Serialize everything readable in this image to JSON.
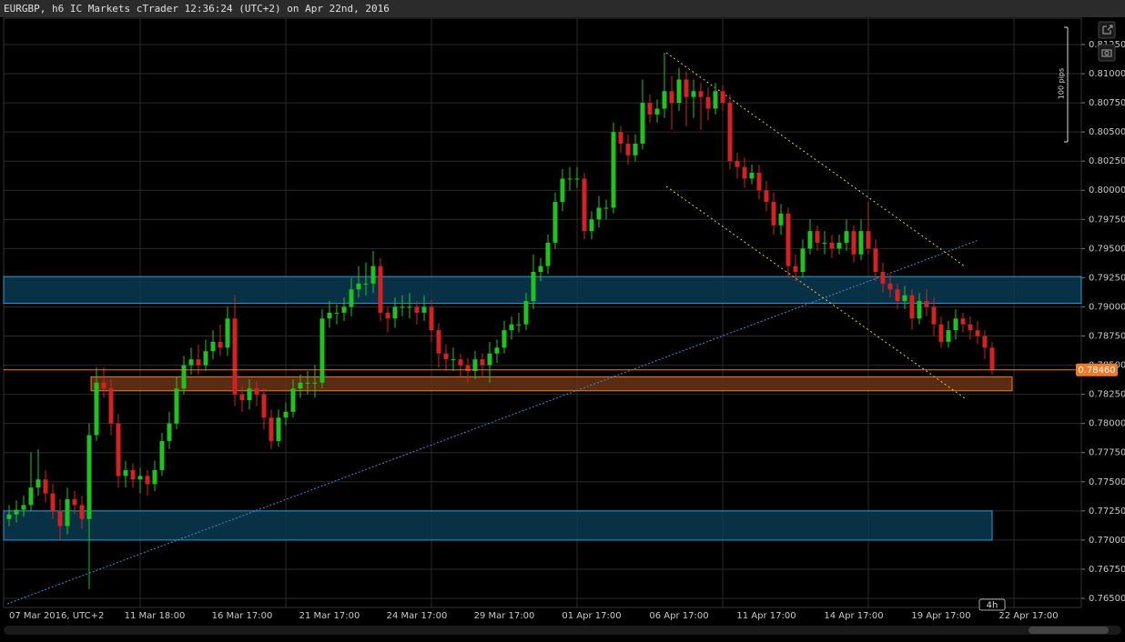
{
  "chart_data": {
    "type": "candlestick",
    "title": "EURGBP, h6 IC Markets cTrader 12:36:24 (UTC+2) on Apr 22nd, 2016",
    "scale_label": "100 pips",
    "timeframe_badge": "4h",
    "up_color": "#1ec31e",
    "down_color": "#d42121",
    "grid": true,
    "ylim": [
      0.76422,
      0.81476
    ],
    "yticks": [
      {
        "value": 0.765,
        "label": "0.76500"
      },
      {
        "value": 0.7675,
        "label": "0.76750"
      },
      {
        "value": 0.77,
        "label": "0.77000"
      },
      {
        "value": 0.7725,
        "label": "0.77250"
      },
      {
        "value": 0.775,
        "label": "0.77500"
      },
      {
        "value": 0.7775,
        "label": "0.77750"
      },
      {
        "value": 0.78,
        "label": "0.78000"
      },
      {
        "value": 0.7825,
        "label": "0.78250"
      },
      {
        "value": 0.785,
        "label": "0.78500"
      },
      {
        "value": 0.7875,
        "label": "0.78750"
      },
      {
        "value": 0.79,
        "label": "0.79000"
      },
      {
        "value": 0.7925,
        "label": "0.79250"
      },
      {
        "value": 0.795,
        "label": "0.79500"
      },
      {
        "value": 0.7975,
        "label": "0.79750"
      },
      {
        "value": 0.8,
        "label": "0.80000"
      },
      {
        "value": 0.8025,
        "label": "0.80250"
      },
      {
        "value": 0.805,
        "label": "0.80500"
      },
      {
        "value": 0.8075,
        "label": "0.80750"
      },
      {
        "value": 0.81,
        "label": "0.81000"
      },
      {
        "value": 0.8125,
        "label": "0.81250"
      }
    ],
    "last_price": {
      "value": 0.7846,
      "label": "0.78460",
      "color": "#f07a28"
    },
    "zones": [
      {
        "low": 0.7903,
        "high": 0.7926,
        "color": "#0b3a52",
        "stroke": "#2a9ad6"
      },
      {
        "low": 0.7828,
        "high": 0.784,
        "color": "#6b3418",
        "stroke": "#f07a28"
      },
      {
        "low": 0.77,
        "high": 0.7725,
        "color": "#0b3a52",
        "stroke": "#2a9ad6"
      }
    ],
    "categories": [
      "07 Mar 2016, UTC+2",
      null,
      null,
      null,
      null,
      null,
      null,
      null,
      null,
      null,
      null,
      null,
      null,
      null,
      null,
      null,
      null,
      null,
      null,
      null,
      "11 Mar 18:00",
      null,
      null,
      null,
      null,
      null,
      null,
      null,
      null,
      null,
      null,
      null,
      "16 Mar 17:00",
      null,
      null,
      null,
      null,
      null,
      null,
      null,
      null,
      null,
      null,
      null,
      "21 Mar 17:00",
      null,
      null,
      null,
      null,
      null,
      null,
      null,
      null,
      null,
      null,
      null,
      "24 Mar 17:00",
      null,
      null,
      null,
      null,
      null,
      null,
      null,
      null,
      null,
      null,
      null,
      "29 Mar 17:00",
      null,
      null,
      null,
      null,
      null,
      null,
      null,
      null,
      null,
      null,
      null,
      "01 Apr 17:00",
      null,
      null,
      null,
      null,
      null,
      null,
      null,
      null,
      null,
      null,
      null,
      "06 Apr 17:00",
      null,
      null,
      null,
      null,
      null,
      null,
      null,
      null,
      null,
      null,
      null,
      "11 Apr 17:00",
      null,
      null,
      null,
      null,
      null,
      null,
      null,
      null,
      null,
      null,
      null,
      "14 Apr 17:00",
      null,
      null,
      null,
      null,
      null,
      null,
      null,
      null,
      null,
      null,
      null,
      "19 Apr 17:00",
      null,
      null,
      null,
      null,
      null,
      null,
      null,
      null,
      null,
      null,
      null,
      "22 Apr 17:00"
    ],
    "ohlc": [
      [
        0.7718,
        0.773,
        0.7712,
        0.7722
      ],
      [
        0.7722,
        0.7734,
        0.7715,
        0.7726
      ],
      [
        0.7726,
        0.7738,
        0.772,
        0.773
      ],
      [
        0.773,
        0.7775,
        0.7725,
        0.7745
      ],
      [
        0.7745,
        0.7778,
        0.7738,
        0.7752
      ],
      [
        0.7752,
        0.776,
        0.7732,
        0.774
      ],
      [
        0.774,
        0.7748,
        0.7718,
        0.7725
      ],
      [
        0.7725,
        0.7735,
        0.77,
        0.7712
      ],
      [
        0.7712,
        0.7745,
        0.7705,
        0.7735
      ],
      [
        0.7735,
        0.7742,
        0.7722,
        0.773
      ],
      [
        0.773,
        0.7738,
        0.771,
        0.7718
      ],
      [
        0.7718,
        0.78,
        0.7658,
        0.779
      ],
      [
        0.779,
        0.7848,
        0.7785,
        0.7835
      ],
      [
        0.7835,
        0.7848,
        0.7822,
        0.783
      ],
      [
        0.783,
        0.7838,
        0.779,
        0.78
      ],
      [
        0.78,
        0.7808,
        0.7745,
        0.7755
      ],
      [
        0.7755,
        0.7768,
        0.7745,
        0.776
      ],
      [
        0.776,
        0.7766,
        0.7745,
        0.7752
      ],
      [
        0.7752,
        0.7762,
        0.774,
        0.7755
      ],
      [
        0.7755,
        0.776,
        0.7738,
        0.7748
      ],
      [
        0.7748,
        0.7768,
        0.7742,
        0.776
      ],
      [
        0.776,
        0.7792,
        0.7755,
        0.7785
      ],
      [
        0.7785,
        0.781,
        0.7778,
        0.78
      ],
      [
        0.78,
        0.784,
        0.7795,
        0.783
      ],
      [
        0.783,
        0.7858,
        0.7825,
        0.785
      ],
      [
        0.785,
        0.7865,
        0.7842,
        0.7855
      ],
      [
        0.7855,
        0.7868,
        0.7842,
        0.785
      ],
      [
        0.785,
        0.7872,
        0.7845,
        0.7862
      ],
      [
        0.7862,
        0.788,
        0.7855,
        0.787
      ],
      [
        0.787,
        0.7885,
        0.7858,
        0.7865
      ],
      [
        0.7865,
        0.79,
        0.7858,
        0.789
      ],
      [
        0.789,
        0.791,
        0.7815,
        0.7825
      ],
      [
        0.7825,
        0.7832,
        0.781,
        0.782
      ],
      [
        0.782,
        0.7838,
        0.7812,
        0.783
      ],
      [
        0.783,
        0.7836,
        0.7815,
        0.7825
      ],
      [
        0.7825,
        0.783,
        0.7795,
        0.7805
      ],
      [
        0.7805,
        0.7812,
        0.7778,
        0.7785
      ],
      [
        0.7785,
        0.7812,
        0.778,
        0.7805
      ],
      [
        0.7805,
        0.7818,
        0.7798,
        0.781
      ],
      [
        0.781,
        0.7838,
        0.7805,
        0.783
      ],
      [
        0.783,
        0.7842,
        0.7822,
        0.7835
      ],
      [
        0.7835,
        0.7845,
        0.7825,
        0.7835
      ],
      [
        0.7835,
        0.785,
        0.7822,
        0.7835
      ],
      [
        0.7835,
        0.7898,
        0.783,
        0.789
      ],
      [
        0.789,
        0.7905,
        0.7882,
        0.7895
      ],
      [
        0.7895,
        0.7902,
        0.7885,
        0.7895
      ],
      [
        0.7895,
        0.7908,
        0.7888,
        0.79
      ],
      [
        0.79,
        0.7925,
        0.7892,
        0.7915
      ],
      [
        0.7915,
        0.7935,
        0.7908,
        0.792
      ],
      [
        0.792,
        0.7938,
        0.791,
        0.792
      ],
      [
        0.792,
        0.7948,
        0.7912,
        0.7935
      ],
      [
        0.7935,
        0.7942,
        0.7888,
        0.7895
      ],
      [
        0.7895,
        0.79,
        0.7878,
        0.789
      ],
      [
        0.789,
        0.7908,
        0.7882,
        0.79
      ],
      [
        0.79,
        0.791,
        0.7892,
        0.79
      ],
      [
        0.79,
        0.7912,
        0.789,
        0.79
      ],
      [
        0.79,
        0.7905,
        0.7885,
        0.7895
      ],
      [
        0.7895,
        0.791,
        0.7888,
        0.79
      ],
      [
        0.79,
        0.7906,
        0.787,
        0.788
      ],
      [
        0.788,
        0.7886,
        0.7848,
        0.786
      ],
      [
        0.786,
        0.7868,
        0.7845,
        0.7855
      ],
      [
        0.7855,
        0.7865,
        0.7845,
        0.7855
      ],
      [
        0.7855,
        0.786,
        0.784,
        0.785
      ],
      [
        0.785,
        0.7856,
        0.7835,
        0.7845
      ],
      [
        0.7845,
        0.7862,
        0.7838,
        0.7855
      ],
      [
        0.7855,
        0.786,
        0.784,
        0.785
      ],
      [
        0.785,
        0.787,
        0.7835,
        0.786
      ],
      [
        0.786,
        0.7872,
        0.7852,
        0.7865
      ],
      [
        0.7865,
        0.7888,
        0.786,
        0.788
      ],
      [
        0.788,
        0.7892,
        0.7872,
        0.7885
      ],
      [
        0.7885,
        0.7895,
        0.7878,
        0.7885
      ],
      [
        0.7885,
        0.7912,
        0.788,
        0.7905
      ],
      [
        0.7905,
        0.7945,
        0.7898,
        0.793
      ],
      [
        0.793,
        0.7942,
        0.7922,
        0.7935
      ],
      [
        0.7935,
        0.7962,
        0.7928,
        0.7955
      ],
      [
        0.7955,
        0.7998,
        0.795,
        0.799
      ],
      [
        0.799,
        0.8018,
        0.7982,
        0.801
      ],
      [
        0.801,
        0.802,
        0.8,
        0.801
      ],
      [
        0.801,
        0.802,
        0.8002,
        0.801
      ],
      [
        0.801,
        0.8015,
        0.7958,
        0.7965
      ],
      [
        0.7965,
        0.7982,
        0.7958,
        0.7975
      ],
      [
        0.7975,
        0.7995,
        0.7968,
        0.7985
      ],
      [
        0.7985,
        0.7992,
        0.7975,
        0.7985
      ],
      [
        0.7985,
        0.8058,
        0.798,
        0.805
      ],
      [
        0.805,
        0.8055,
        0.8032,
        0.804
      ],
      [
        0.804,
        0.8048,
        0.8022,
        0.803
      ],
      [
        0.803,
        0.8048,
        0.8025,
        0.804
      ],
      [
        0.804,
        0.8095,
        0.8035,
        0.8075
      ],
      [
        0.8075,
        0.8082,
        0.8058,
        0.8065
      ],
      [
        0.8065,
        0.8078,
        0.8058,
        0.807
      ],
      [
        0.807,
        0.8118,
        0.8062,
        0.8085
      ],
      [
        0.8085,
        0.8098,
        0.8052,
        0.8075
      ],
      [
        0.8075,
        0.8105,
        0.8068,
        0.8095
      ],
      [
        0.8095,
        0.8102,
        0.8055,
        0.808
      ],
      [
        0.808,
        0.8095,
        0.8062,
        0.8085
      ],
      [
        0.8085,
        0.8092,
        0.8052,
        0.808
      ],
      [
        0.808,
        0.8088,
        0.806,
        0.807
      ],
      [
        0.807,
        0.8092,
        0.8065,
        0.8085
      ],
      [
        0.8085,
        0.809,
        0.8068,
        0.8075
      ],
      [
        0.8075,
        0.8082,
        0.8018,
        0.8025
      ],
      [
        0.8025,
        0.8032,
        0.801,
        0.802
      ],
      [
        0.802,
        0.8028,
        0.8002,
        0.801
      ],
      [
        0.801,
        0.8022,
        0.8005,
        0.8015
      ],
      [
        0.8015,
        0.8022,
        0.7992,
        0.8
      ],
      [
        0.8,
        0.8008,
        0.7982,
        0.799
      ],
      [
        0.799,
        0.7998,
        0.7962,
        0.797
      ],
      [
        0.797,
        0.7988,
        0.7962,
        0.798
      ],
      [
        0.798,
        0.7985,
        0.7925,
        0.7935
      ],
      [
        0.7935,
        0.7945,
        0.7922,
        0.793
      ],
      [
        0.793,
        0.7958,
        0.7925,
        0.795
      ],
      [
        0.795,
        0.7975,
        0.7945,
        0.7965
      ],
      [
        0.7965,
        0.797,
        0.7948,
        0.7955
      ],
      [
        0.7955,
        0.7965,
        0.7945,
        0.7955
      ],
      [
        0.7955,
        0.7962,
        0.7942,
        0.795
      ],
      [
        0.795,
        0.7962,
        0.7945,
        0.7955
      ],
      [
        0.7955,
        0.7975,
        0.7948,
        0.7965
      ],
      [
        0.7965,
        0.797,
        0.7938,
        0.7945
      ],
      [
        0.7945,
        0.7975,
        0.794,
        0.7965
      ],
      [
        0.7965,
        0.799,
        0.7945,
        0.795
      ],
      [
        0.795,
        0.7958,
        0.7922,
        0.793
      ],
      [
        0.793,
        0.7938,
        0.7912,
        0.792
      ],
      [
        0.792,
        0.7928,
        0.7908,
        0.7915
      ],
      [
        0.7915,
        0.792,
        0.7898,
        0.7905
      ],
      [
        0.7905,
        0.7918,
        0.7898,
        0.791
      ],
      [
        0.791,
        0.7915,
        0.788,
        0.789
      ],
      [
        0.789,
        0.7912,
        0.7885,
        0.7905
      ],
      [
        0.7905,
        0.7915,
        0.7892,
        0.79
      ],
      [
        0.79,
        0.7908,
        0.7875,
        0.7885
      ],
      [
        0.7885,
        0.7892,
        0.7865,
        0.787
      ],
      [
        0.787,
        0.7888,
        0.7865,
        0.788
      ],
      [
        0.788,
        0.7898,
        0.7872,
        0.789
      ],
      [
        0.789,
        0.7895,
        0.7878,
        0.7885
      ],
      [
        0.7885,
        0.7892,
        0.7872,
        0.788
      ],
      [
        0.788,
        0.7888,
        0.7868,
        0.7875
      ],
      [
        0.7875,
        0.788,
        0.7855,
        0.7865
      ],
      [
        0.7865,
        0.787,
        0.7842,
        0.7846
      ],
      null,
      null,
      null,
      null,
      null
    ]
  }
}
